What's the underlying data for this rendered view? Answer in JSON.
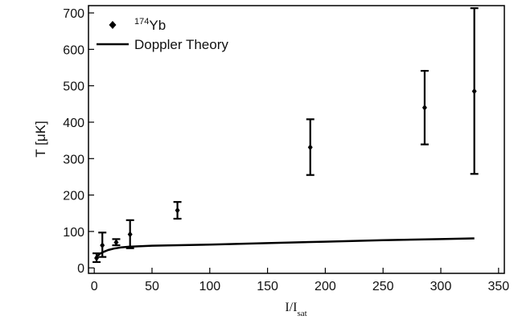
{
  "chart_data": {
    "type": "scatter",
    "title": "",
    "xlabel": {
      "main": "I/I",
      "sub": "sat"
    },
    "ylabel": "T [μK]",
    "xlim": [
      -5,
      355
    ],
    "ylim": [
      -15,
      720
    ],
    "x_ticks": [
      0,
      50,
      100,
      150,
      200,
      250,
      300,
      350
    ],
    "y_ticks": [
      0,
      100,
      200,
      300,
      400,
      500,
      600,
      700
    ],
    "grid": false,
    "legend_position": "top-left",
    "series": [
      {
        "name": {
          "sup": "174",
          "base": "Yb"
        },
        "kind": "points-with-error-bars",
        "color": "#000000",
        "points": [
          {
            "x": 2,
            "y": 27,
            "lo": 16,
            "hi": 40
          },
          {
            "x": 7,
            "y": 62,
            "lo": 30,
            "hi": 97
          },
          {
            "x": 19,
            "y": 70,
            "lo": 62,
            "hi": 79
          },
          {
            "x": 31,
            "y": 92,
            "lo": 54,
            "hi": 131
          },
          {
            "x": 72,
            "y": 158,
            "lo": 135,
            "hi": 181
          },
          {
            "x": 187,
            "y": 331,
            "lo": 255,
            "hi": 408
          },
          {
            "x": 286,
            "y": 440,
            "lo": 339,
            "hi": 541
          },
          {
            "x": 329,
            "y": 485,
            "lo": 258,
            "hi": 713
          }
        ]
      },
      {
        "name": "Doppler Theory",
        "kind": "line",
        "color": "#000000",
        "points": [
          {
            "x": 1,
            "y": 28
          },
          {
            "x": 3,
            "y": 34
          },
          {
            "x": 5,
            "y": 39
          },
          {
            "x": 8,
            "y": 44
          },
          {
            "x": 12,
            "y": 49
          },
          {
            "x": 17,
            "y": 53
          },
          {
            "x": 23,
            "y": 56
          },
          {
            "x": 30,
            "y": 58
          },
          {
            "x": 50,
            "y": 61
          },
          {
            "x": 100,
            "y": 64
          },
          {
            "x": 150,
            "y": 68
          },
          {
            "x": 200,
            "y": 72
          },
          {
            "x": 250,
            "y": 76
          },
          {
            "x": 300,
            "y": 79
          },
          {
            "x": 329,
            "y": 81
          }
        ]
      }
    ]
  }
}
